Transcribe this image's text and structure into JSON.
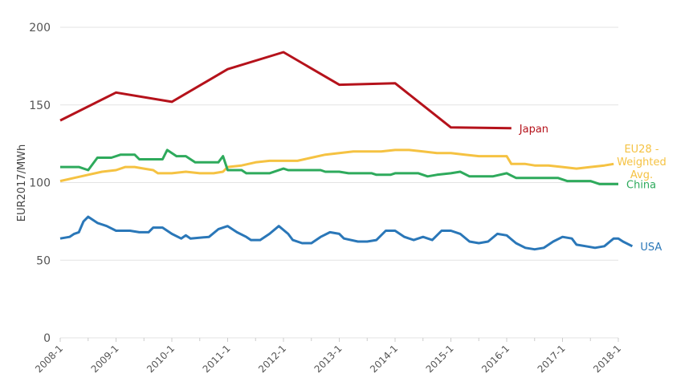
{
  "chart_data": {
    "type": "line",
    "title": "",
    "xlabel": "",
    "ylabel": "EUR2017/MWh",
    "ylim": [
      0,
      200
    ],
    "yticks": [
      0,
      50,
      100,
      150,
      200
    ],
    "xticks": [
      "2008-1",
      "2009-1",
      "2010-1",
      "2011-1",
      "2012-1",
      "2013-1",
      "2014-1",
      "2015-1",
      "2016-1",
      "2017-1",
      "2018-1"
    ],
    "grid": "horizontal",
    "series": [
      {
        "name": "Japan",
        "color": "#b5121b",
        "points": [
          [
            "2008-1",
            140
          ],
          [
            "2009-1",
            158
          ],
          [
            "2010-1",
            152
          ],
          [
            "2011-1",
            173
          ],
          [
            "2012-1",
            184
          ],
          [
            "2013-1",
            163
          ],
          [
            "2014-1",
            164
          ],
          [
            "2015-1",
            135.5
          ],
          [
            "2016-2",
            135
          ]
        ]
      },
      {
        "name": "EU28 - Weighted Avg.",
        "color": "#f5c242",
        "points": [
          [
            "2008-1",
            101
          ],
          [
            "2008-4",
            103
          ],
          [
            "2008-7",
            105
          ],
          [
            "2008-10",
            107
          ],
          [
            "2009-1",
            108
          ],
          [
            "2009-3",
            110
          ],
          [
            "2009-5",
            110
          ],
          [
            "2009-7",
            109
          ],
          [
            "2009-9",
            108
          ],
          [
            "2009-10",
            106
          ],
          [
            "2010-1",
            106
          ],
          [
            "2010-4",
            107
          ],
          [
            "2010-7",
            106
          ],
          [
            "2010-10",
            106
          ],
          [
            "2010-12",
            107
          ],
          [
            "2011-1",
            110
          ],
          [
            "2011-4",
            111
          ],
          [
            "2011-7",
            113
          ],
          [
            "2011-10",
            114
          ],
          [
            "2012-1",
            114
          ],
          [
            "2012-4",
            114
          ],
          [
            "2012-7",
            116
          ],
          [
            "2012-10",
            118
          ],
          [
            "2013-1",
            119
          ],
          [
            "2013-4",
            120
          ],
          [
            "2013-7",
            120
          ],
          [
            "2013-10",
            120
          ],
          [
            "2014-1",
            121
          ],
          [
            "2014-4",
            121
          ],
          [
            "2014-7",
            120
          ],
          [
            "2014-10",
            119
          ],
          [
            "2015-1",
            119
          ],
          [
            "2015-4",
            118
          ],
          [
            "2015-7",
            117
          ],
          [
            "2015-10",
            117
          ],
          [
            "2016-1",
            117
          ],
          [
            "2016-2",
            112
          ],
          [
            "2016-5",
            112
          ],
          [
            "2016-7",
            111
          ],
          [
            "2016-10",
            111
          ],
          [
            "2017-1",
            110
          ],
          [
            "2017-4",
            109
          ],
          [
            "2017-7",
            110
          ],
          [
            "2017-10",
            111
          ],
          [
            "2017-12",
            112
          ]
        ]
      },
      {
        "name": "China",
        "color": "#2eaa5c",
        "points": [
          [
            "2008-1",
            110
          ],
          [
            "2008-5",
            110
          ],
          [
            "2008-7",
            108
          ],
          [
            "2008-9",
            116
          ],
          [
            "2008-12",
            116
          ],
          [
            "2009-2",
            118
          ],
          [
            "2009-5",
            118
          ],
          [
            "2009-6",
            115
          ],
          [
            "2009-11",
            115
          ],
          [
            "2009-12",
            121
          ],
          [
            "2010-2",
            117
          ],
          [
            "2010-4",
            117
          ],
          [
            "2010-6",
            113
          ],
          [
            "2010-11",
            113
          ],
          [
            "2010-12",
            117
          ],
          [
            "2011-1",
            108
          ],
          [
            "2011-4",
            108
          ],
          [
            "2011-5",
            106
          ],
          [
            "2011-10",
            106
          ],
          [
            "2012-1",
            109
          ],
          [
            "2012-2",
            108
          ],
          [
            "2012-9",
            108
          ],
          [
            "2012-10",
            107
          ],
          [
            "2013-1",
            107
          ],
          [
            "2013-3",
            106
          ],
          [
            "2013-8",
            106
          ],
          [
            "2013-9",
            105
          ],
          [
            "2013-12",
            105
          ],
          [
            "2014-1",
            106
          ],
          [
            "2014-6",
            106
          ],
          [
            "2014-8",
            104
          ],
          [
            "2014-10",
            105
          ],
          [
            "2015-1",
            106
          ],
          [
            "2015-3",
            107
          ],
          [
            "2015-5",
            104
          ],
          [
            "2015-10",
            104
          ],
          [
            "2016-1",
            106
          ],
          [
            "2016-3",
            103
          ],
          [
            "2016-12",
            103
          ],
          [
            "2017-2",
            101
          ],
          [
            "2017-7",
            101
          ],
          [
            "2017-9",
            99
          ],
          [
            "2018-1",
            99
          ]
        ]
      },
      {
        "name": "USA",
        "color": "#2a77b8",
        "points": [
          [
            "2008-1",
            64
          ],
          [
            "2008-3",
            65
          ],
          [
            "2008-4",
            67
          ],
          [
            "2008-5",
            68
          ],
          [
            "2008-6",
            75
          ],
          [
            "2008-7",
            78
          ],
          [
            "2008-9",
            74
          ],
          [
            "2008-11",
            72
          ],
          [
            "2009-1",
            69
          ],
          [
            "2009-4",
            69
          ],
          [
            "2009-6",
            68
          ],
          [
            "2009-8",
            68
          ],
          [
            "2009-9",
            71
          ],
          [
            "2009-11",
            71
          ],
          [
            "2010-1",
            67
          ],
          [
            "2010-3",
            64
          ],
          [
            "2010-4",
            66
          ],
          [
            "2010-5",
            64
          ],
          [
            "2010-9",
            65
          ],
          [
            "2010-11",
            70
          ],
          [
            "2011-1",
            72
          ],
          [
            "2011-3",
            68
          ],
          [
            "2011-5",
            65
          ],
          [
            "2011-6",
            63
          ],
          [
            "2011-8",
            63
          ],
          [
            "2011-10",
            67
          ],
          [
            "2011-12",
            72
          ],
          [
            "2012-2",
            67
          ],
          [
            "2012-3",
            63
          ],
          [
            "2012-5",
            61
          ],
          [
            "2012-7",
            61
          ],
          [
            "2012-9",
            65
          ],
          [
            "2012-11",
            68
          ],
          [
            "2013-1",
            67
          ],
          [
            "2013-2",
            64
          ],
          [
            "2013-5",
            62
          ],
          [
            "2013-7",
            62
          ],
          [
            "2013-9",
            63
          ],
          [
            "2013-11",
            69
          ],
          [
            "2014-1",
            69
          ],
          [
            "2014-3",
            65
          ],
          [
            "2014-5",
            63
          ],
          [
            "2014-7",
            65
          ],
          [
            "2014-9",
            63
          ],
          [
            "2014-11",
            69
          ],
          [
            "2015-1",
            69
          ],
          [
            "2015-3",
            67
          ],
          [
            "2015-5",
            62
          ],
          [
            "2015-7",
            61
          ],
          [
            "2015-9",
            62
          ],
          [
            "2015-11",
            67
          ],
          [
            "2016-1",
            66
          ],
          [
            "2016-3",
            61
          ],
          [
            "2016-5",
            58
          ],
          [
            "2016-7",
            57
          ],
          [
            "2016-9",
            58
          ],
          [
            "2016-11",
            62
          ],
          [
            "2017-1",
            65
          ],
          [
            "2017-3",
            64
          ],
          [
            "2017-4",
            60
          ],
          [
            "2017-6",
            59
          ],
          [
            "2017-8",
            58
          ],
          [
            "2017-10",
            59
          ],
          [
            "2017-12",
            64
          ],
          [
            "2018-1",
            64
          ],
          [
            "2018-2",
            62
          ],
          [
            "2018-4",
            59
          ]
        ]
      }
    ]
  }
}
